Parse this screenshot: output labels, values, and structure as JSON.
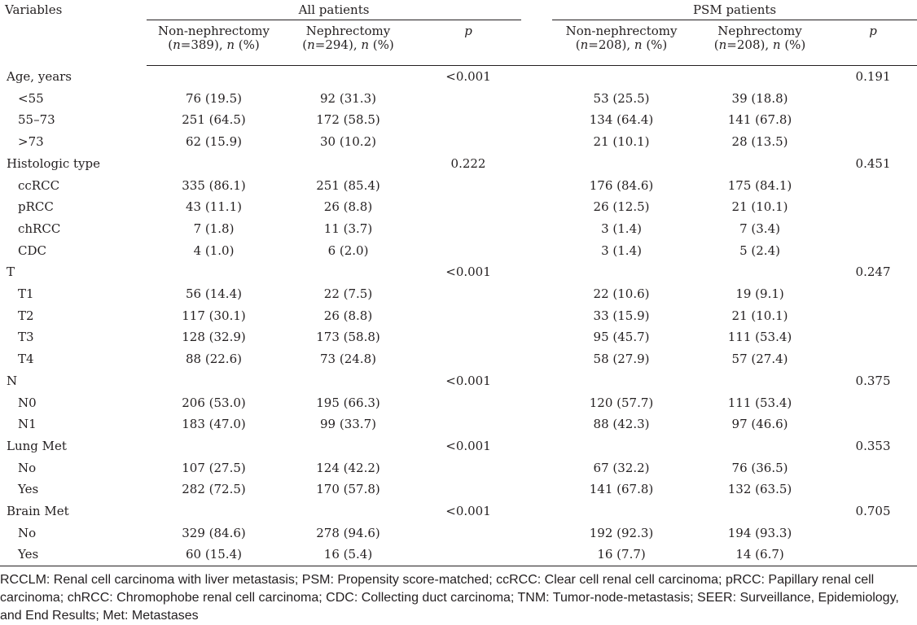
{
  "header": {
    "variables": "Variables",
    "group_all": "All patients",
    "group_psm": "PSM patients",
    "non_neph": "Non-nephrectomy",
    "neph": "Nephrectomy",
    "all_non_n": "(n=389), n (%)",
    "all_neph_n": "(n=294), n (%)",
    "psm_non_n": "(n=208), n (%)",
    "psm_neph_n": "(n=208), n (%)",
    "p": "p"
  },
  "rows": [
    {
      "label": "Age, years",
      "sub": false,
      "a1": "",
      "a2": "",
      "ap": "<0.001",
      "b1": "",
      "b2": "",
      "bp": "0.191"
    },
    {
      "label": "<55",
      "sub": true,
      "a1": "76 (19.5)",
      "a2": "92 (31.3)",
      "ap": "",
      "b1": "53 (25.5)",
      "b2": "39 (18.8)",
      "bp": ""
    },
    {
      "label": "55–73",
      "sub": true,
      "a1": "251 (64.5)",
      "a2": "172 (58.5)",
      "ap": "",
      "b1": "134 (64.4)",
      "b2": "141 (67.8)",
      "bp": ""
    },
    {
      "label": ">73",
      "sub": true,
      "a1": "62 (15.9)",
      "a2": "30 (10.2)",
      "ap": "",
      "b1": "21 (10.1)",
      "b2": "28 (13.5)",
      "bp": ""
    },
    {
      "label": "Histologic type",
      "sub": false,
      "a1": "",
      "a2": "",
      "ap": "0.222",
      "b1": "",
      "b2": "",
      "bp": "0.451"
    },
    {
      "label": "ccRCC",
      "sub": true,
      "a1": "335 (86.1)",
      "a2": "251 (85.4)",
      "ap": "",
      "b1": "176 (84.6)",
      "b2": "175 (84.1)",
      "bp": ""
    },
    {
      "label": "pRCC",
      "sub": true,
      "a1": "43 (11.1)",
      "a2": "26 (8.8)",
      "ap": "",
      "b1": "26 (12.5)",
      "b2": "21 (10.1)",
      "bp": ""
    },
    {
      "label": "chRCC",
      "sub": true,
      "a1": "7 (1.8)",
      "a2": "11 (3.7)",
      "ap": "",
      "b1": "3 (1.4)",
      "b2": "7 (3.4)",
      "bp": ""
    },
    {
      "label": "CDC",
      "sub": true,
      "a1": "4 (1.0)",
      "a2": "6 (2.0)",
      "ap": "",
      "b1": "3 (1.4)",
      "b2": "5 (2.4)",
      "bp": ""
    },
    {
      "label": "T",
      "sub": false,
      "a1": "",
      "a2": "",
      "ap": "<0.001",
      "b1": "",
      "b2": "",
      "bp": "0.247"
    },
    {
      "label": "T1",
      "sub": true,
      "a1": "56 (14.4)",
      "a2": "22 (7.5)",
      "ap": "",
      "b1": "22 (10.6)",
      "b2": "19 (9.1)",
      "bp": ""
    },
    {
      "label": "T2",
      "sub": true,
      "a1": "117 (30.1)",
      "a2": "26 (8.8)",
      "ap": "",
      "b1": "33 (15.9)",
      "b2": "21 (10.1)",
      "bp": ""
    },
    {
      "label": "T3",
      "sub": true,
      "a1": "128 (32.9)",
      "a2": "173 (58.8)",
      "ap": "",
      "b1": "95 (45.7)",
      "b2": "111 (53.4)",
      "bp": ""
    },
    {
      "label": "T4",
      "sub": true,
      "a1": "88 (22.6)",
      "a2": "73 (24.8)",
      "ap": "",
      "b1": "58 (27.9)",
      "b2": "57 (27.4)",
      "bp": ""
    },
    {
      "label": "N",
      "sub": false,
      "a1": "",
      "a2": "",
      "ap": "<0.001",
      "b1": "",
      "b2": "",
      "bp": "0.375"
    },
    {
      "label": "N0",
      "sub": true,
      "a1": "206 (53.0)",
      "a2": "195 (66.3)",
      "ap": "",
      "b1": "120 (57.7)",
      "b2": "111 (53.4)",
      "bp": ""
    },
    {
      "label": "N1",
      "sub": true,
      "a1": "183 (47.0)",
      "a2": "99 (33.7)",
      "ap": "",
      "b1": "88 (42.3)",
      "b2": "97 (46.6)",
      "bp": ""
    },
    {
      "label": "Lung Met",
      "sub": false,
      "a1": "",
      "a2": "",
      "ap": "<0.001",
      "b1": "",
      "b2": "",
      "bp": "0.353"
    },
    {
      "label": "No",
      "sub": true,
      "a1": "107 (27.5)",
      "a2": "124 (42.2)",
      "ap": "",
      "b1": "67 (32.2)",
      "b2": "76 (36.5)",
      "bp": ""
    },
    {
      "label": "Yes",
      "sub": true,
      "a1": "282 (72.5)",
      "a2": "170 (57.8)",
      "ap": "",
      "b1": "141 (67.8)",
      "b2": "132 (63.5)",
      "bp": ""
    },
    {
      "label": "Brain Met",
      "sub": false,
      "a1": "",
      "a2": "",
      "ap": "<0.001",
      "b1": "",
      "b2": "",
      "bp": "0.705"
    },
    {
      "label": "No",
      "sub": true,
      "a1": "329 (84.6)",
      "a2": "278 (94.6)",
      "ap": "",
      "b1": "192 (92.3)",
      "b2": "194 (93.3)",
      "bp": ""
    },
    {
      "label": "Yes",
      "sub": true,
      "a1": "60 (15.4)",
      "a2": "16 (5.4)",
      "ap": "",
      "b1": "16 (7.7)",
      "b2": "14 (6.7)",
      "bp": ""
    }
  ],
  "footnote": "RCCLM: Renal cell carcinoma with liver metastasis; PSM: Propensity score-matched; ccRCC: Clear cell renal cell carcinoma; pRCC: Papillary renal cell carcinoma; chRCC: Chromophobe renal cell carcinoma; CDC: Collecting duct carcinoma; TNM: Tumor-node-metastasis; SEER: Surveillance, Epidemiology, and End Results; Met: Metastases"
}
